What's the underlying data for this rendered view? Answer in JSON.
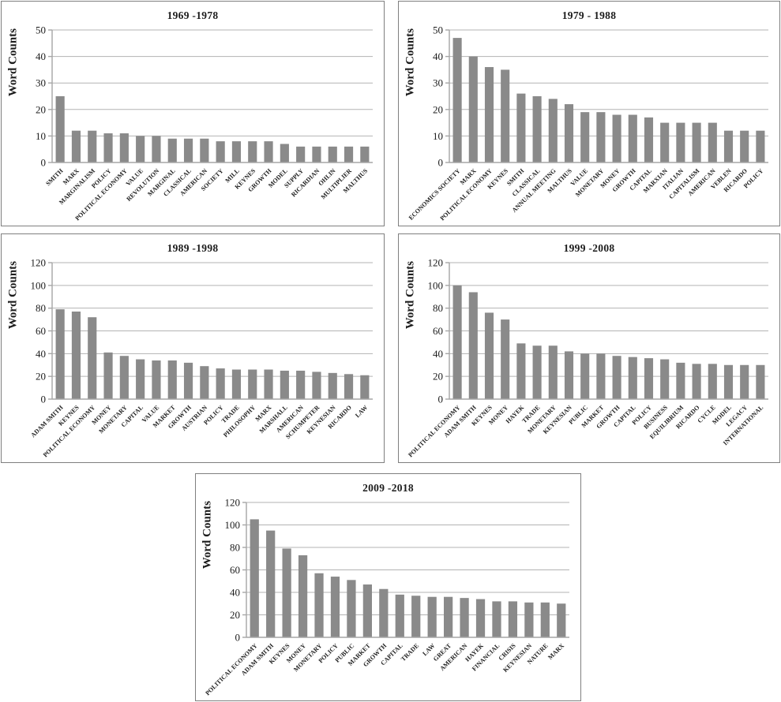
{
  "figure": {
    "description": "Five decade-by-decade bar charts of word counts",
    "y_axis_title": "Word Counts"
  },
  "colors": {
    "bar": "#8a8a8a",
    "grid": "#b3b3b3",
    "axis": "#a6a6a6",
    "text": "#1c1c1c",
    "panel_border": "#7f7f7f",
    "background": "#ffffff"
  },
  "chart_data": [
    {
      "type": "bar",
      "title": "1969 -1978",
      "ylabel": "Word Counts",
      "xlabel": "",
      "ylim": [
        0,
        50
      ],
      "ytick_step": 10,
      "grid": true,
      "legend": "none",
      "categories": [
        "SMITH",
        "MARX",
        "MARGINALISM",
        "POLICY",
        "POLITICAL ECONOMY",
        "VALUE",
        "REVOLUTION",
        "MARGINAL",
        "CLASSICAL",
        "AMERICAN",
        "SOCIETY",
        "MILL",
        "KEYNES",
        "GROWTH",
        "MODEL",
        "SUPPLY",
        "RICARDIAN",
        "OHLIN",
        "MULTIPLIER",
        "MALTHUS"
      ],
      "values": [
        25,
        12,
        12,
        11,
        11,
        10,
        10,
        9,
        9,
        9,
        8,
        8,
        8,
        8,
        7,
        6,
        6,
        6,
        6,
        6
      ]
    },
    {
      "type": "bar",
      "title": "1979 - 1988",
      "ylabel": "Word Counts",
      "xlabel": "",
      "ylim": [
        0,
        50
      ],
      "ytick_step": 10,
      "grid": true,
      "legend": "none",
      "categories": [
        "ECONOMICS SOCIETY",
        "MARX",
        "POLITICAL ECONOMY",
        "KEYNES",
        "SMITH",
        "CLASSICAL",
        "ANNUAL MEETING",
        "MALTHUS",
        "VALUE",
        "MONETARY",
        "MONEY",
        "GROWTH",
        "CAPITAL",
        "MARXIAN",
        "ITALIAN",
        "CAPITALISM",
        "AMERICAN",
        "VEBLEN",
        "RICARDO",
        "POLICY"
      ],
      "values": [
        47,
        40,
        36,
        35,
        26,
        25,
        24,
        22,
        19,
        19,
        18,
        18,
        17,
        15,
        15,
        15,
        15,
        12,
        12,
        12
      ]
    },
    {
      "type": "bar",
      "title": "1989 -1998",
      "ylabel": "Word Counts",
      "xlabel": "",
      "ylim": [
        0,
        120
      ],
      "ytick_step": 20,
      "grid": true,
      "legend": "none",
      "categories": [
        "ADAM SMITH",
        "KEYNES",
        "POLITICAL ECONOMY",
        "MONEY",
        "MONETARY",
        "CAPITAL",
        "VALUE",
        "MARKET",
        "GROWTH",
        "AUSTRIAN",
        "POLICY",
        "TRADE",
        "PHILOSOPHY",
        "MARX",
        "MARSHALL",
        "AMERICAN",
        "SCHUMPETER",
        "KEYNESIAN",
        "RICARDO",
        "LAW"
      ],
      "values": [
        79,
        77,
        72,
        41,
        38,
        35,
        34,
        34,
        32,
        29,
        27,
        26,
        26,
        26,
        25,
        25,
        24,
        23,
        22,
        21
      ]
    },
    {
      "type": "bar",
      "title": "1999 -2008",
      "ylabel": "Word Counts",
      "xlabel": "",
      "ylim": [
        0,
        120
      ],
      "ytick_step": 20,
      "grid": true,
      "legend": "none",
      "categories": [
        "POLITICAL ECONOMY",
        "ADAM SMITH",
        "KEYNES",
        "MONEY",
        "HAYEK",
        "TRADE",
        "MONETARY",
        "KEYNESIAN",
        "PUBLIC",
        "MARKET",
        "GROWTH",
        "CAPITAL",
        "POLICY",
        "BUSINESS",
        "EQUILIBRIUM",
        "RICARDO",
        "CYCLE",
        "MODEL",
        "LEGACY",
        "INTERNATIONAL"
      ],
      "values": [
        100,
        94,
        76,
        70,
        49,
        47,
        47,
        42,
        40,
        40,
        38,
        37,
        36,
        35,
        32,
        31,
        31,
        30,
        30,
        30
      ]
    },
    {
      "type": "bar",
      "title": "2009 -2018",
      "ylabel": "Word Counts",
      "xlabel": "",
      "ylim": [
        0,
        120
      ],
      "ytick_step": 20,
      "grid": true,
      "legend": "none",
      "categories": [
        "POLITICAL ECONOMY",
        "ADAM SMITH",
        "KEYNES",
        "MONEY",
        "MONETARY",
        "POLICY",
        "PUBLIC",
        "MARKET",
        "GROWTH",
        "CAPITAL",
        "TRADE",
        "LAW",
        "GREAT",
        "AMERICAN",
        "HAYEK",
        "FINANCIAL",
        "CRISIS",
        "KEYNESIAN",
        "NATURE",
        "MARX"
      ],
      "values": [
        105,
        95,
        79,
        73,
        57,
        54,
        51,
        47,
        43,
        38,
        37,
        36,
        36,
        35,
        34,
        32,
        32,
        31,
        31,
        30
      ]
    }
  ]
}
